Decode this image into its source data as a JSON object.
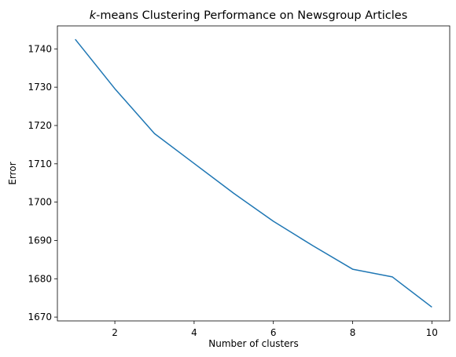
{
  "chart_data": {
    "type": "line",
    "title_italic": "k",
    "title_rest": "-means Clustering Performance on Newsgroup Articles",
    "xlabel": "Number of clusters",
    "ylabel": "Error",
    "x": [
      1,
      2,
      3,
      4,
      5,
      6,
      7,
      8,
      9,
      10
    ],
    "series": [
      {
        "values": [
          1742.5,
          1729.6,
          1717.9,
          1710.1,
          1702.3,
          1695.0,
          1688.6,
          1682.5,
          1680.5,
          1672.6
        ]
      }
    ],
    "xlim": [
      0.55,
      10.45
    ],
    "ylim": [
      1669.0,
      1746.0
    ],
    "xticks": [
      2,
      4,
      6,
      8,
      10
    ],
    "yticks": [
      1670,
      1680,
      1690,
      1700,
      1710,
      1720,
      1730,
      1740
    ],
    "grid": false,
    "line_color": "#1f77b4"
  }
}
